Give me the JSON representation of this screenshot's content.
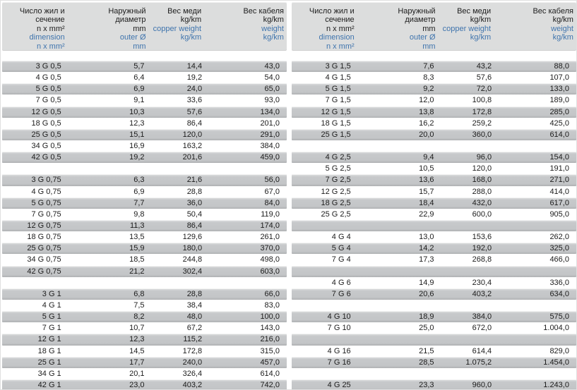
{
  "colors": {
    "header_bg": "#dcdddd",
    "row_gray": "#c6c8ca",
    "row_white": "#ffffff",
    "blue_text": "#3f74ad",
    "black_text": "#1c1c1c"
  },
  "header": {
    "columns": [
      {
        "id": "dimension",
        "ru": [
          "Число жил и",
          "сечение",
          "n x mm²"
        ],
        "en": [
          "dimension",
          "n x mm²"
        ]
      },
      {
        "id": "outer_diameter",
        "ru": [
          "Наружный",
          "диаметр",
          "mm"
        ],
        "en": [
          "outer Ø",
          "mm"
        ]
      },
      {
        "id": "copper_weight",
        "ru": [
          "Вес меди",
          "kg/km"
        ],
        "en": [
          "copper weight",
          "kg/km"
        ]
      },
      {
        "id": "cable_weight",
        "ru": [
          "Вес кабеля",
          "kg/km"
        ],
        "en": [
          "weight",
          "kg/km"
        ]
      }
    ]
  },
  "tables": {
    "left": {
      "rows": [
        [
          "3 G 0,5",
          "5,7",
          "14,4",
          "43,0"
        ],
        [
          "4 G 0,5",
          "6,4",
          "19,2",
          "54,0"
        ],
        [
          "5 G 0,5",
          "6,9",
          "24,0",
          "65,0"
        ],
        [
          "7 G 0,5",
          "9,1",
          "33,6",
          "93,0"
        ],
        [
          "12 G 0,5",
          "10,3",
          "57,6",
          "134,0"
        ],
        [
          "18 G 0,5",
          "12,3",
          "86,4",
          "201,0"
        ],
        [
          "25 G 0,5",
          "15,1",
          "120,0",
          "291,0"
        ],
        [
          "34 G 0,5",
          "16,9",
          "163,2",
          "384,0"
        ],
        [
          "42 G 0,5",
          "19,2",
          "201,6",
          "459,0"
        ],
        [],
        [
          "3 G 0,75",
          "6,3",
          "21,6",
          "56,0"
        ],
        [
          "4 G 0,75",
          "6,9",
          "28,8",
          "67,0"
        ],
        [
          "5 G 0,75",
          "7,7",
          "36,0",
          "84,0"
        ],
        [
          "7 G 0,75",
          "9,8",
          "50,4",
          "119,0"
        ],
        [
          "12 G 0,75",
          "11,3",
          "86,4",
          "174,0"
        ],
        [
          "18 G 0,75",
          "13,5",
          "129,6",
          "261,0"
        ],
        [
          "25 G 0,75",
          "15,9",
          "180,0",
          "370,0"
        ],
        [
          "34 G 0,75",
          "18,5",
          "244,8",
          "498,0"
        ],
        [
          "42 G 0,75",
          "21,2",
          "302,4",
          "603,0"
        ],
        [],
        [
          "3 G 1",
          "6,8",
          "28,8",
          "66,0"
        ],
        [
          "4 G 1",
          "7,5",
          "38,4",
          "83,0"
        ],
        [
          "5 G 1",
          "8,2",
          "48,0",
          "100,0"
        ],
        [
          "7 G 1",
          "10,7",
          "67,2",
          "143,0"
        ],
        [
          "12 G 1",
          "12,3",
          "115,2",
          "216,0"
        ],
        [
          "18 G 1",
          "14,5",
          "172,8",
          "315,0"
        ],
        [
          "25 G 1",
          "17,7",
          "240,0",
          "457,0"
        ],
        [
          "34 G 1",
          "20,1",
          "326,4",
          "614,0"
        ],
        [
          "42 G 1",
          "23,0",
          "403,2",
          "742,0"
        ]
      ]
    },
    "right": {
      "rows": [
        [
          "3 G 1,5",
          "7,6",
          "43,2",
          "88,0"
        ],
        [
          "4 G 1,5",
          "8,3",
          "57,6",
          "107,0"
        ],
        [
          "5 G 1,5",
          "9,2",
          "72,0",
          "133,0"
        ],
        [
          "7 G 1,5",
          "12,0",
          "100,8",
          "189,0"
        ],
        [
          "12 G 1,5",
          "13,8",
          "172,8",
          "285,0"
        ],
        [
          "18 G 1,5",
          "16,2",
          "259,2",
          "425,0"
        ],
        [
          "25 G 1,5",
          "20,0",
          "360,0",
          "614,0"
        ],
        [],
        [
          "4 G 2,5",
          "9,4",
          "96,0",
          "154,0"
        ],
        [
          "5 G 2,5",
          "10,5",
          "120,0",
          "191,0"
        ],
        [
          "7 G 2,5",
          "13,6",
          "168,0",
          "271,0"
        ],
        [
          "12 G 2,5",
          "15,7",
          "288,0",
          "414,0"
        ],
        [
          "18 G 2,5",
          "18,4",
          "432,0",
          "617,0"
        ],
        [
          "25 G 2,5",
          "22,9",
          "600,0",
          "905,0"
        ],
        [],
        [
          "4 G 4",
          "13,0",
          "153,6",
          "262,0"
        ],
        [
          "5 G 4",
          "14,2",
          "192,0",
          "325,0"
        ],
        [
          "7 G 4",
          "17,3",
          "268,8",
          "466,0"
        ],
        [],
        [
          "4 G 6",
          "14,9",
          "230,4",
          "336,0"
        ],
        [
          "7 G 6",
          "20,6",
          "403,2",
          "634,0"
        ],
        [],
        [
          "4 G 10",
          "18,9",
          "384,0",
          "575,0"
        ],
        [
          "7 G 10",
          "25,0",
          "672,0",
          "1.004,0"
        ],
        [],
        [
          "4 G 16",
          "21,5",
          "614,4",
          "829,0"
        ],
        [
          "7 G 16",
          "28,5",
          "1.075,2",
          "1.454,0"
        ],
        [],
        [
          "4 G 25",
          "23,3",
          "960,0",
          "1.243,0"
        ]
      ]
    }
  }
}
